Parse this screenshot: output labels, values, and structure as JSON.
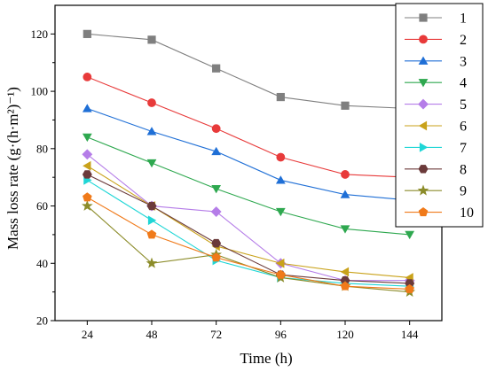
{
  "chart_data": {
    "type": "line",
    "xlabel": "Time (h)",
    "ylabel": "Mass loss rate (g·(h·m²)⁻¹)",
    "x": [
      24,
      48,
      72,
      96,
      120,
      144
    ],
    "xticks": [
      "24",
      "48",
      "72",
      "96",
      "120",
      "144"
    ],
    "ylim": [
      20,
      130
    ],
    "yticks": [
      20,
      40,
      60,
      80,
      100,
      120
    ],
    "grid": false,
    "legend_position": "right",
    "series": [
      {
        "name": "1",
        "color": "#7f7f7f",
        "marker": "square",
        "values": [
          120,
          118,
          108,
          98,
          95,
          94
        ]
      },
      {
        "name": "2",
        "color": "#e83a3a",
        "marker": "circle",
        "values": [
          105,
          96,
          87,
          77,
          71,
          70
        ]
      },
      {
        "name": "3",
        "color": "#1f6fd6",
        "marker": "triangle-up",
        "values": [
          94,
          86,
          79,
          69,
          64,
          62
        ]
      },
      {
        "name": "4",
        "color": "#2ea84f",
        "marker": "triangle-down",
        "values": [
          84,
          75,
          66,
          58,
          52,
          50
        ]
      },
      {
        "name": "5",
        "color": "#b57de8",
        "marker": "diamond",
        "values": [
          78,
          60,
          58,
          40,
          34,
          34
        ]
      },
      {
        "name": "6",
        "color": "#c9a21a",
        "marker": "triangle-left",
        "values": [
          74,
          60,
          46,
          40,
          37,
          35
        ]
      },
      {
        "name": "7",
        "color": "#1fd6d6",
        "marker": "triangle-right",
        "values": [
          69,
          55,
          41,
          35,
          33,
          32
        ]
      },
      {
        "name": "8",
        "color": "#6b3a3a",
        "marker": "hexagon",
        "values": [
          71,
          60,
          47,
          36,
          34,
          33
        ]
      },
      {
        "name": "9",
        "color": "#8c8c2a",
        "marker": "star",
        "values": [
          60,
          40,
          43,
          35,
          32,
          30
        ]
      },
      {
        "name": "10",
        "color": "#f07a1a",
        "marker": "pentagon",
        "values": [
          63,
          50,
          42,
          36,
          32,
          31
        ]
      }
    ]
  }
}
